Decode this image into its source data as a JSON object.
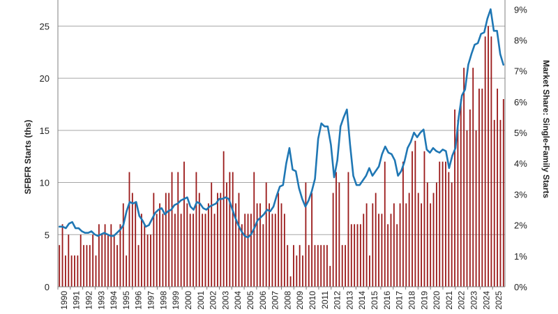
{
  "chart_data": {
    "type": "bar+line",
    "title": "",
    "ylabel": "SFBFR Starts (ths)",
    "y2label": "Market Share: Single-Family Starts",
    "ylim": [
      0,
      27.5
    ],
    "y2lim": [
      0,
      9.3
    ],
    "yticks": [
      "0",
      "5",
      "10",
      "15",
      "20",
      "25"
    ],
    "y2ticks": [
      "0%",
      "1%",
      "2%",
      "3%",
      "4%",
      "5%",
      "6%",
      "7%",
      "8%",
      "9%"
    ],
    "year_labels": [
      "1990",
      "1991",
      "1992",
      "1993",
      "1994",
      "1995",
      "1996",
      "1997",
      "1998",
      "1999",
      "2000",
      "2001",
      "2002",
      "2003",
      "2004",
      "2005",
      "2006",
      "2007",
      "2008",
      "2009",
      "2010",
      "2011",
      "2012",
      "2013",
      "2014",
      "2015",
      "2016",
      "2017",
      "2018",
      "2019",
      "2020",
      "2021",
      "2022",
      "2023",
      "2024",
      "2025"
    ],
    "series": [
      {
        "name": "SFBFR Starts (ths)",
        "type": "bar",
        "color": "#9b1b1b",
        "axis": "left",
        "values": [
          4,
          6,
          3,
          5,
          3,
          3,
          3,
          5,
          4,
          4,
          4,
          5,
          3,
          6,
          5,
          6,
          5,
          6,
          5,
          4,
          6,
          8,
          3,
          11,
          9,
          8,
          4,
          7,
          6,
          5,
          5,
          9,
          7,
          8,
          7,
          9,
          9,
          11,
          7,
          11,
          7,
          12,
          8,
          7,
          7,
          11,
          9,
          7,
          7,
          8,
          10,
          7,
          9,
          9,
          13,
          10,
          11,
          11,
          8,
          9,
          6,
          7,
          7,
          7,
          11,
          8,
          8,
          6,
          10,
          8,
          7,
          7,
          9,
          8,
          7,
          4,
          1,
          4,
          3,
          4,
          3,
          10,
          4,
          9,
          4,
          4,
          4,
          4,
          4,
          2,
          9,
          11,
          10,
          4,
          4,
          11,
          6,
          6,
          6,
          6,
          7,
          8,
          3,
          8,
          9,
          7,
          7,
          12,
          6,
          7,
          8,
          6,
          8,
          12,
          8,
          9,
          13,
          14,
          9,
          8,
          13,
          10,
          8,
          9,
          10,
          12,
          12,
          12,
          11,
          10,
          17,
          16,
          18,
          21,
          15,
          17,
          21,
          15,
          19,
          19,
          24,
          25,
          24,
          16,
          19,
          16,
          18
        ]
      },
      {
        "name": "Market Share: Single-Family Starts",
        "type": "line",
        "color": "#1f77b4",
        "axis": "right",
        "values": [
          1.95,
          1.95,
          1.9,
          2.05,
          2.1,
          1.9,
          1.9,
          1.8,
          1.75,
          1.75,
          1.8,
          1.7,
          1.65,
          1.7,
          1.75,
          1.7,
          1.65,
          1.65,
          1.75,
          1.85,
          2.0,
          2.45,
          2.75,
          2.7,
          2.75,
          2.3,
          2.15,
          1.95,
          2.0,
          2.2,
          2.4,
          2.5,
          2.55,
          2.35,
          2.45,
          2.5,
          2.65,
          2.7,
          2.8,
          2.85,
          2.9,
          2.6,
          2.5,
          2.75,
          2.7,
          2.55,
          2.5,
          2.6,
          2.65,
          2.7,
          2.85,
          2.85,
          2.9,
          2.85,
          2.55,
          2.25,
          2.0,
          1.8,
          1.65,
          1.6,
          1.7,
          1.9,
          2.15,
          2.25,
          2.35,
          2.5,
          2.45,
          2.6,
          2.95,
          3.25,
          3.3,
          4.0,
          4.5,
          3.8,
          3.75,
          3.2,
          2.85,
          2.6,
          2.8,
          3.1,
          3.5,
          4.8,
          5.3,
          5.2,
          5.2,
          4.6,
          3.55,
          4.1,
          5.2,
          5.5,
          5.75,
          4.6,
          3.6,
          3.3,
          3.3,
          3.45,
          3.6,
          3.85,
          3.6,
          3.75,
          3.9,
          4.3,
          4.55,
          4.35,
          4.3,
          4.1,
          3.6,
          3.75,
          4.05,
          4.5,
          4.7,
          5.0,
          4.85,
          5.0,
          5.1,
          4.45,
          4.35,
          4.5,
          4.4,
          4.35,
          4.45,
          4.4,
          3.85,
          4.25,
          4.5,
          5.5,
          6.2,
          6.4,
          7.2,
          7.55,
          7.85,
          7.9,
          8.2,
          8.25,
          8.7,
          9.0,
          8.3,
          8.3,
          7.55,
          7.2
        ]
      }
    ]
  }
}
